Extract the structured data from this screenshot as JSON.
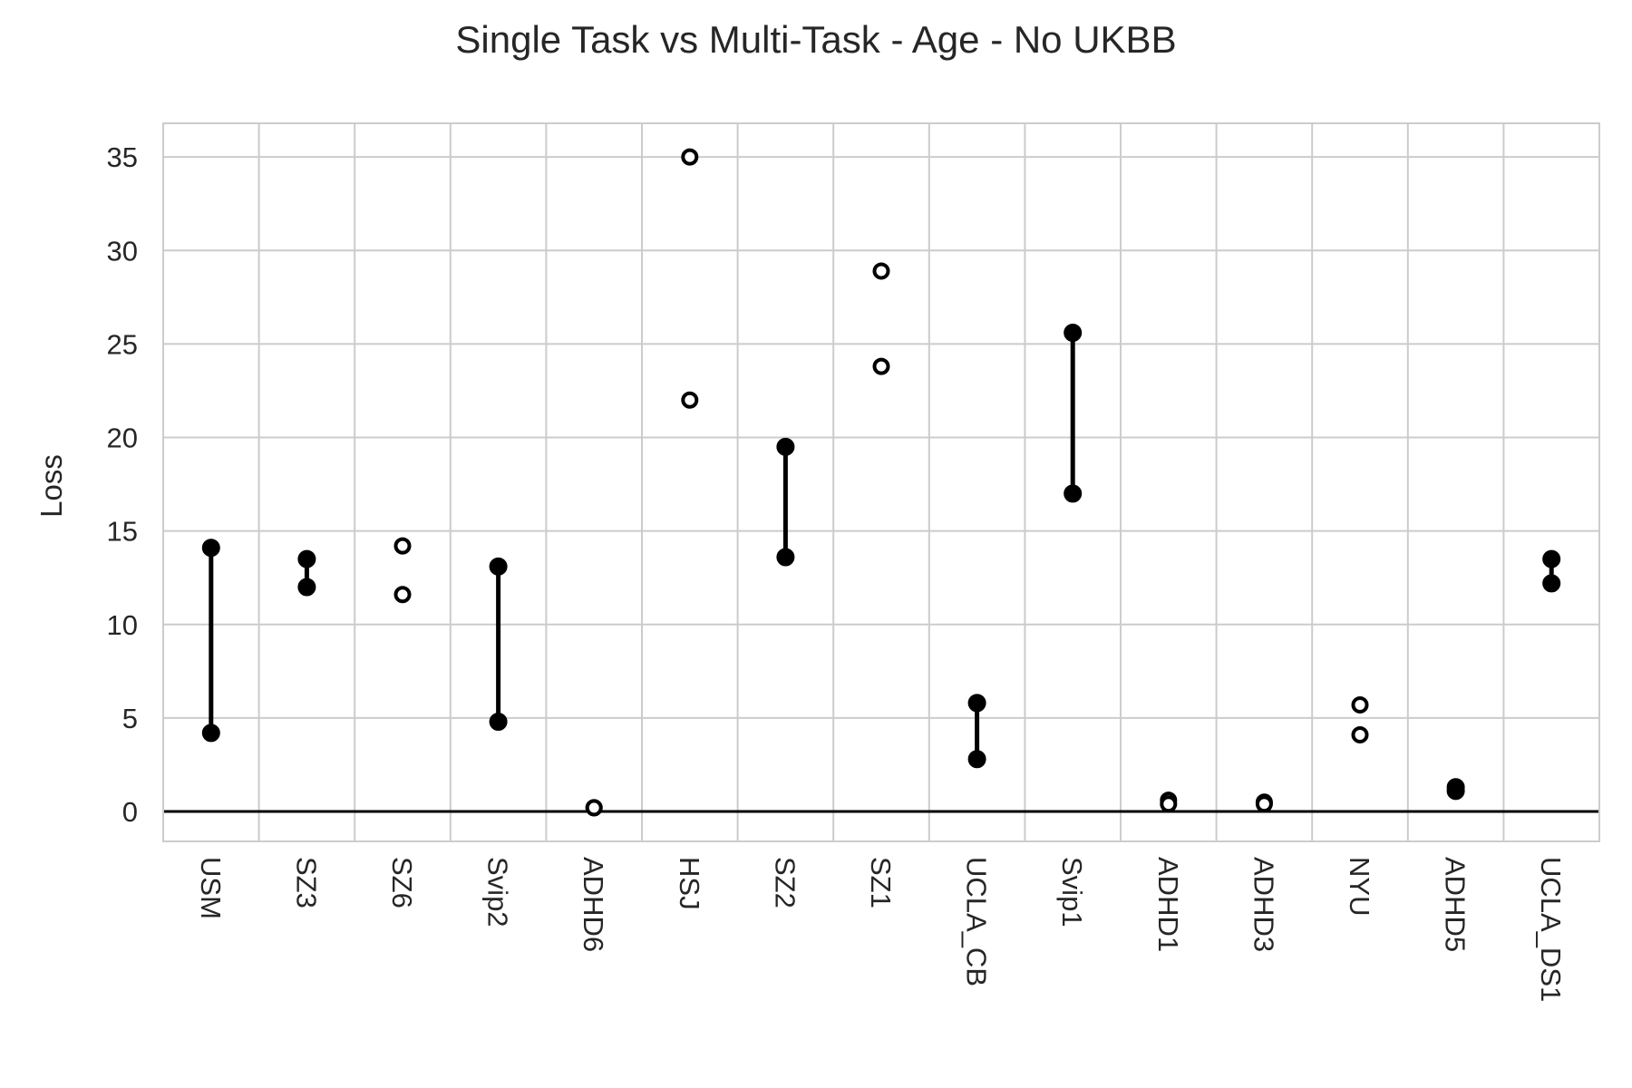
{
  "chart_data": {
    "type": "scatter",
    "title": "Single Task vs Multi-Task - Age - No UKBB",
    "ylabel": "Loss",
    "xlabel": "",
    "ylim": [
      -1.6,
      36.8
    ],
    "yticks": [
      0,
      5,
      10,
      15,
      20,
      25,
      30,
      35
    ],
    "grid": true,
    "reference_line": 0,
    "categories": [
      "USM",
      "SZ3",
      "SZ6",
      "Svip2",
      "ADHD6",
      "HSJ",
      "SZ2",
      "SZ1",
      "UCLA_CB",
      "Svip1",
      "ADHD1",
      "ADHD3",
      "NYU",
      "ADHD5",
      "UCLA_DS1"
    ],
    "series": [
      {
        "values": [
          14.1,
          13.5,
          14.2,
          13.1,
          0.2,
          35.0,
          19.5,
          28.9,
          5.8,
          25.6,
          0.6,
          0.5,
          5.7,
          1.3,
          13.5
        ]
      },
      {
        "values": [
          4.2,
          12.0,
          11.6,
          4.8,
          0.2,
          22.0,
          13.6,
          23.8,
          2.8,
          17.0,
          0.4,
          0.4,
          4.1,
          1.1,
          12.2
        ]
      }
    ],
    "filled_connected": [
      true,
      true,
      false,
      true,
      false,
      false,
      true,
      false,
      true,
      true,
      false,
      false,
      false,
      true,
      true
    ]
  }
}
